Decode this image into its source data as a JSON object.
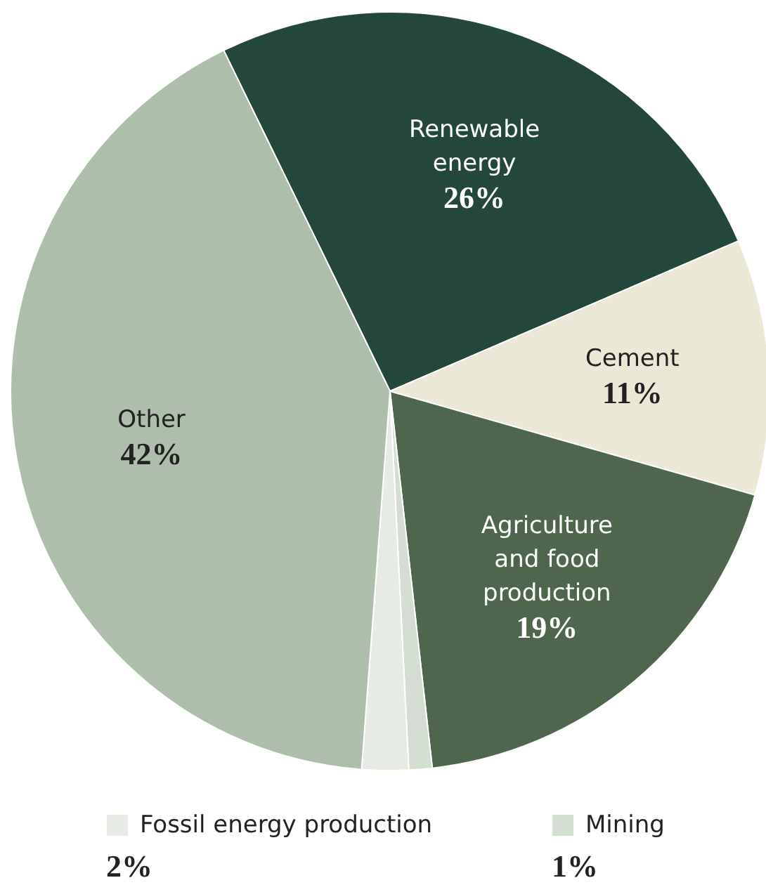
{
  "chart_data": {
    "type": "pie",
    "categories": [
      "Renewable energy",
      "Cement",
      "Agriculture and food production",
      "Mining",
      "Fossil energy production",
      "Other"
    ],
    "values": [
      26,
      11,
      19,
      1,
      2,
      42
    ],
    "value_labels": [
      "26%",
      "11%",
      "19%",
      "1%",
      "2%",
      "42%"
    ],
    "colors": [
      "#23473a",
      "#ebe8d6",
      "#4e664b",
      "#d3ddd1",
      "#e6ebe4",
      "#adbfaa"
    ],
    "legend": "bottom"
  }
}
